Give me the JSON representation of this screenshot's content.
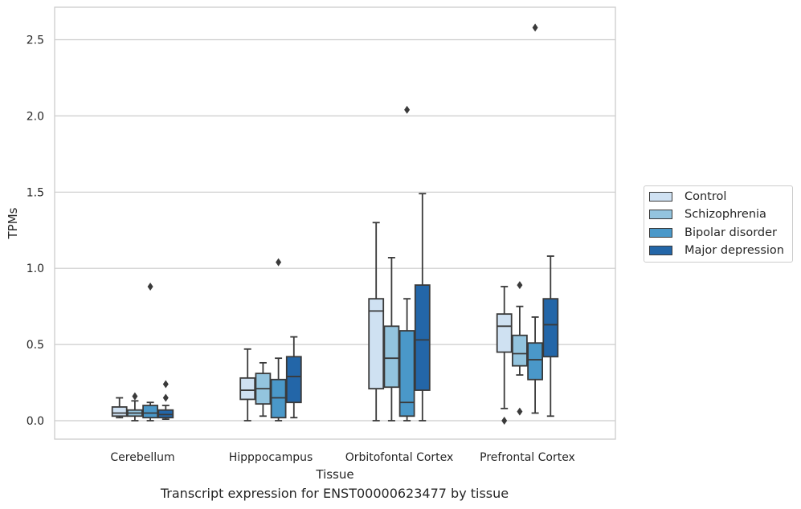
{
  "chart_data": {
    "type": "box",
    "title": "",
    "xlabel": "Tissue",
    "ylabel": "TPMs",
    "caption": "Transcript expression for ENST00000623477 by tissue",
    "ylim": [
      -0.13,
      2.72
    ],
    "yticks": [
      0.0,
      0.5,
      1.0,
      1.5,
      2.0,
      2.5
    ],
    "ytick_labels": [
      "0.0",
      "0.5",
      "1.0",
      "1.5",
      "2.0",
      "2.5"
    ],
    "grid": "horizontal",
    "legend_placement": "center-right outside",
    "categories": [
      "Cerebellum",
      "Hipppocampus",
      "Orbitofontal Cortex",
      "Prefrontal Cortex"
    ],
    "series": [
      {
        "name": "Control",
        "color": "#cfe1f2",
        "boxes": [
          {
            "whislo": 0.02,
            "q1": 0.03,
            "med": 0.05,
            "q3": 0.09,
            "whishi": 0.15,
            "fliers": []
          },
          {
            "whislo": 0.0,
            "q1": 0.14,
            "med": 0.2,
            "q3": 0.28,
            "whishi": 0.47,
            "fliers": []
          },
          {
            "whislo": 0.0,
            "q1": 0.21,
            "med": 0.72,
            "q3": 0.8,
            "whishi": 1.3,
            "fliers": []
          },
          {
            "whislo": 0.08,
            "q1": 0.45,
            "med": 0.62,
            "q3": 0.7,
            "whishi": 0.88,
            "fliers": [
              0.0
            ]
          }
        ]
      },
      {
        "name": "Schizophrenia",
        "color": "#93c4de",
        "boxes": [
          {
            "whislo": 0.0,
            "q1": 0.03,
            "med": 0.05,
            "q3": 0.07,
            "whishi": 0.13,
            "fliers": [
              0.16
            ]
          },
          {
            "whislo": 0.03,
            "q1": 0.11,
            "med": 0.21,
            "q3": 0.31,
            "whishi": 0.38,
            "fliers": []
          },
          {
            "whislo": 0.0,
            "q1": 0.22,
            "med": 0.41,
            "q3": 0.62,
            "whishi": 1.07,
            "fliers": []
          },
          {
            "whislo": 0.3,
            "q1": 0.36,
            "med": 0.44,
            "q3": 0.56,
            "whishi": 0.75,
            "fliers": [
              0.89,
              0.06
            ]
          }
        ]
      },
      {
        "name": "Bipolar disorder",
        "color": "#4a98c9",
        "boxes": [
          {
            "whislo": 0.0,
            "q1": 0.02,
            "med": 0.05,
            "q3": 0.1,
            "whishi": 0.12,
            "fliers": [
              0.88
            ]
          },
          {
            "whislo": 0.0,
            "q1": 0.02,
            "med": 0.15,
            "q3": 0.27,
            "whishi": 0.41,
            "fliers": [
              1.04
            ]
          },
          {
            "whislo": 0.0,
            "q1": 0.03,
            "med": 0.12,
            "q3": 0.59,
            "whishi": 0.8,
            "fliers": [
              2.04
            ]
          },
          {
            "whislo": 0.05,
            "q1": 0.27,
            "med": 0.4,
            "q3": 0.51,
            "whishi": 0.68,
            "fliers": [
              2.58
            ]
          }
        ]
      },
      {
        "name": "Major depression",
        "color": "#2366a8",
        "boxes": [
          {
            "whislo": 0.01,
            "q1": 0.02,
            "med": 0.04,
            "q3": 0.07,
            "whishi": 0.1,
            "fliers": [
              0.24,
              0.15
            ]
          },
          {
            "whislo": 0.02,
            "q1": 0.12,
            "med": 0.29,
            "q3": 0.42,
            "whishi": 0.55,
            "fliers": []
          },
          {
            "whislo": 0.0,
            "q1": 0.2,
            "med": 0.53,
            "q3": 0.89,
            "whishi": 1.49,
            "fliers": []
          },
          {
            "whislo": 0.03,
            "q1": 0.42,
            "med": 0.63,
            "q3": 0.8,
            "whishi": 1.08,
            "fliers": []
          }
        ]
      }
    ]
  }
}
